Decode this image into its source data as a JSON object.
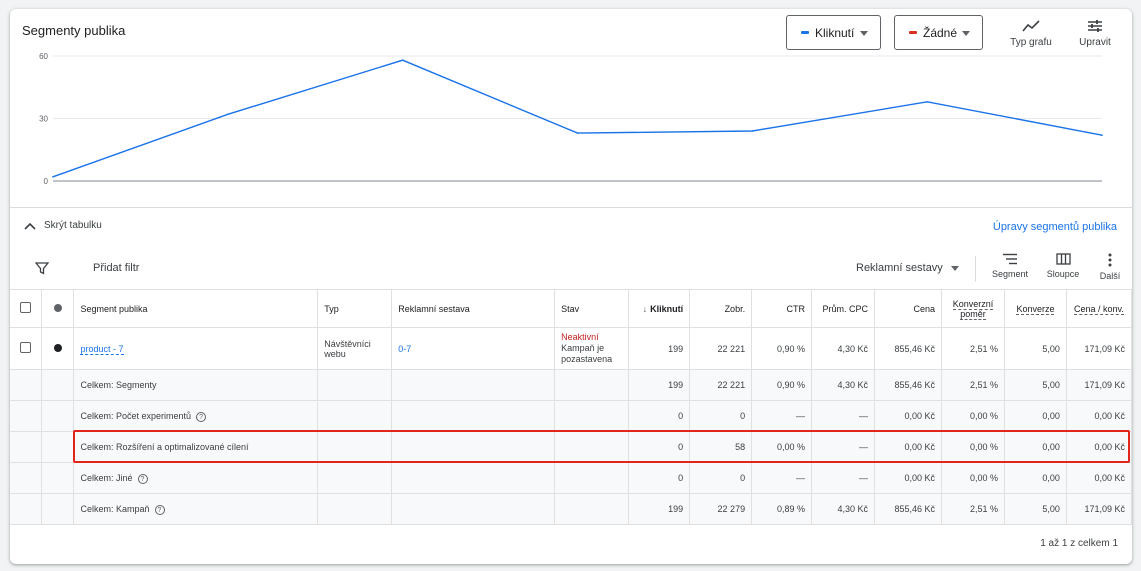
{
  "card": {
    "title": "Segmenty publika"
  },
  "metric_dropdowns": [
    {
      "label": "Kliknutí",
      "color": "#1a73e8"
    },
    {
      "label": "Žádné",
      "color": "#d93025"
    }
  ],
  "toolbar": {
    "chart_type_label": "Typ grafu",
    "edit_label": "Upravit"
  },
  "chart_data": {
    "type": "line",
    "title": "",
    "xlabel": "",
    "ylabel": "",
    "ylim": [
      0,
      60
    ],
    "yticks": [
      "60",
      "30",
      "0"
    ],
    "grid": true,
    "series": [
      {
        "name": "Kliknutí",
        "color": "#1a73e8",
        "values": [
          2,
          32,
          58,
          23,
          24,
          38,
          22
        ]
      }
    ]
  },
  "table_controls": {
    "hide_table": "Skrýt tabulku",
    "segment_edits_link": "Úpravy segmentů publika",
    "add_filter": "Přidat filtr",
    "ad_groups_select": "Reklamní sestavy",
    "segment_label": "Segment",
    "columns_label": "Sloupce",
    "more_label": "Další"
  },
  "table": {
    "headers": {
      "segment": "Segment publika",
      "type": "Typ",
      "ad_group": "Reklamní sestava",
      "status": "Stav",
      "clicks": "Kliknutí",
      "impressions": "Zobr.",
      "ctr": "CTR",
      "avg_cpc": "Prům. CPC",
      "cost": "Cena",
      "conv_rate": "Konverzní poměr",
      "conversions": "Konverze",
      "cost_per_conv": "Cena / konv."
    },
    "main_row": {
      "segment": "product - 7",
      "type": "Návštěvníci webu",
      "ad_group": "0-7",
      "status_main": "Neaktivní",
      "status_sub": "Kampaň je pozastavena",
      "clicks": "199",
      "impressions": "22 221",
      "ctr": "0,90 %",
      "avg_cpc": "4,30 Kč",
      "cost": "855,46 Kč",
      "conv_rate": "2,51 %",
      "conversions": "5,00",
      "cost_per_conv": "171,09 Kč"
    },
    "summary_rows": [
      {
        "label": "Celkem: Segmenty",
        "help": false,
        "clicks": "199",
        "impressions": "22 221",
        "ctr": "0,90 %",
        "avg_cpc": "4,30 Kč",
        "cost": "855,46 Kč",
        "conv_rate": "2,51 %",
        "conversions": "5,00",
        "cost_per_conv": "171,09 Kč"
      },
      {
        "label": "Celkem: Počet experimentů",
        "help": true,
        "clicks": "0",
        "impressions": "0",
        "ctr": "—",
        "avg_cpc": "—",
        "cost": "0,00 Kč",
        "conv_rate": "0,00 %",
        "conversions": "0,00",
        "cost_per_conv": "0,00 Kč"
      },
      {
        "label": "Celkem: Rozšíření a optimalizované cílení",
        "help": false,
        "clicks": "0",
        "impressions": "58",
        "ctr": "0,00 %",
        "avg_cpc": "—",
        "cost": "0,00 Kč",
        "conv_rate": "0,00 %",
        "conversions": "0,00",
        "cost_per_conv": "0,00 Kč"
      },
      {
        "label": "Celkem: Jiné",
        "help": true,
        "clicks": "0",
        "impressions": "0",
        "ctr": "—",
        "avg_cpc": "—",
        "cost": "0,00 Kč",
        "conv_rate": "0,00 %",
        "conversions": "0,00",
        "cost_per_conv": "0,00 Kč"
      },
      {
        "label": "Celkem: Kampaň",
        "help": true,
        "clicks": "199",
        "impressions": "22 279",
        "ctr": "0,89 %",
        "avg_cpc": "4,30 Kč",
        "cost": "855,46 Kč",
        "conv_rate": "2,51 %",
        "conversions": "5,00",
        "cost_per_conv": "171,09 Kč"
      }
    ]
  },
  "pagination": "1 až 1 z celkem 1",
  "help_glyph": "?"
}
